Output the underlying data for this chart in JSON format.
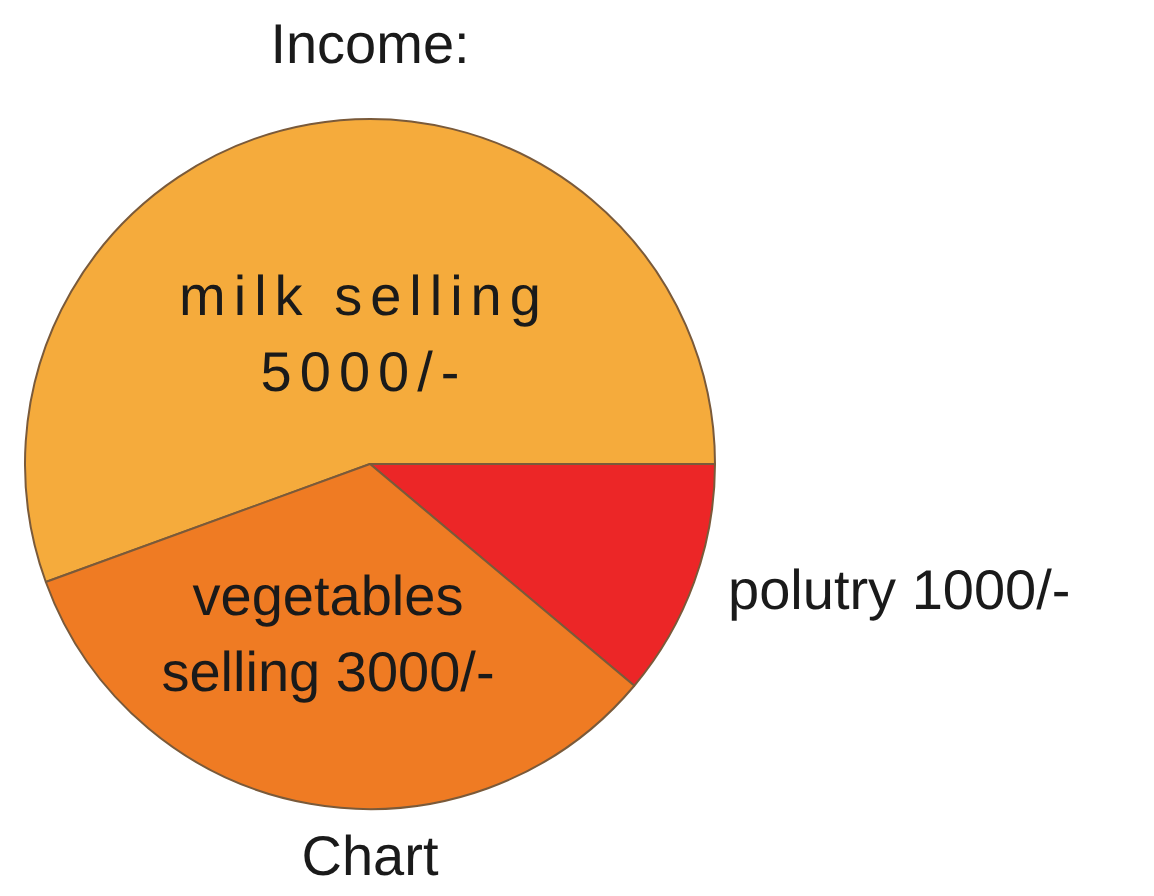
{
  "chart_data": {
    "type": "pie",
    "title": "Income:",
    "categories": [
      "milk selling",
      "polutry",
      "vegetables selling"
    ],
    "values": [
      5000,
      1000,
      3000
    ],
    "value_labels": [
      "5000/-",
      "1000/-",
      "3000/-"
    ],
    "colors": [
      "#f5ab3c",
      "#ec2627",
      "#ef7b23"
    ],
    "annotations": [
      "Chart"
    ]
  }
}
